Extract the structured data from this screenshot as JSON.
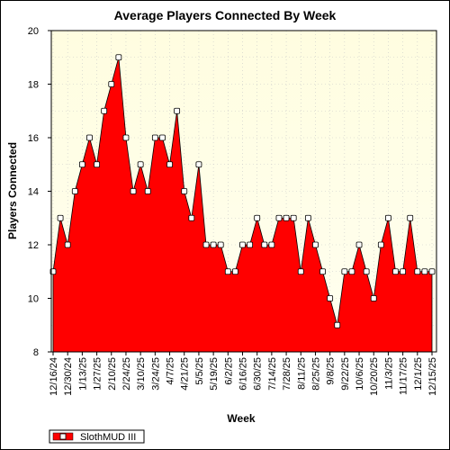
{
  "chart_data": {
    "type": "area",
    "title": "Average Players Connected By Week",
    "xlabel": "Week",
    "ylabel": "Players Connected",
    "ylim": [
      8,
      20
    ],
    "yticks": [
      8,
      10,
      12,
      14,
      16,
      18,
      20
    ],
    "grid": true,
    "legend": "bottom-left",
    "colors": {
      "fill": "#ff0000",
      "marker_fill": "#ffffff",
      "background_top": "#fffde0",
      "background_bottom": "#fffff0"
    },
    "x_tick_labels": [
      "12/16/24",
      "12/30/24",
      "1/13/25",
      "1/27/25",
      "2/10/25",
      "2/24/25",
      "3/10/25",
      "3/24/25",
      "4/7/25",
      "4/21/25",
      "5/5/25",
      "5/19/25",
      "6/2/25",
      "6/16/25",
      "6/30/25",
      "7/14/25",
      "7/28/25",
      "8/11/25",
      "8/25/25",
      "9/8/25",
      "9/22/25",
      "10/6/25",
      "10/20/25",
      "11/3/25",
      "11/17/25",
      "12/1/25",
      "12/15/25"
    ],
    "series": [
      {
        "name": "SlothMUD III",
        "values": [
          11,
          13,
          12,
          14,
          15,
          16,
          15,
          17,
          18,
          19,
          16,
          14,
          15,
          14,
          16,
          16,
          15,
          17,
          14,
          13,
          15,
          12,
          12,
          12,
          11,
          11,
          12,
          12,
          13,
          12,
          12,
          13,
          13,
          13,
          11,
          13,
          12,
          11,
          10,
          9,
          11,
          11,
          12,
          11,
          10,
          12,
          13,
          11,
          11,
          13,
          11,
          11,
          11
        ]
      }
    ]
  }
}
